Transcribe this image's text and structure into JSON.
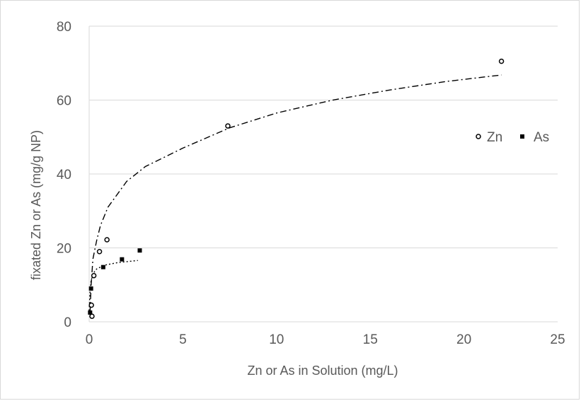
{
  "chart_data": {
    "type": "scatter",
    "title": "",
    "xlabel": "Zn or As in Solution (mg/L)",
    "ylabel": "fixated Zn or As (mg/g NP)",
    "xlim": [
      0,
      25
    ],
    "ylim": [
      0,
      80
    ],
    "x_ticks": [
      "0",
      "5",
      "10",
      "15",
      "20",
      "25"
    ],
    "y_ticks": [
      "0",
      "20",
      "40",
      "60",
      "80"
    ],
    "grid": "horizontal",
    "legend_position": "right",
    "legend": [
      "Zn",
      "As"
    ],
    "colors": {
      "axis": "#d9d9d9",
      "grid": "#d9d9d9",
      "text": "#595959",
      "marker": "#000000"
    },
    "series": [
      {
        "name": "Zn",
        "marker": "open-circle",
        "x": [
          0.15,
          0.12,
          0.25,
          0.55,
          0.95,
          7.4,
          22.0
        ],
        "y": [
          1.5,
          4.5,
          12.5,
          19.0,
          22.2,
          53.0,
          70.5
        ],
        "trendline": {
          "style": "dash-dot",
          "x": [
            0.05,
            0.1,
            0.2,
            0.4,
            0.6,
            1,
            2,
            3,
            5,
            7.5,
            10,
            13,
            16,
            19,
            22
          ],
          "y": [
            2.5,
            9.5,
            17,
            22,
            26,
            31,
            38,
            42,
            47,
            52.5,
            56.5,
            60,
            62.7,
            65,
            66.8
          ]
        }
      },
      {
        "name": "As",
        "marker": "filled-square",
        "x": [
          0.05,
          0.1,
          0.75,
          1.75,
          2.7
        ],
        "y": [
          2.5,
          9.0,
          14.8,
          16.9,
          19.3
        ],
        "trendline": {
          "style": "dotted",
          "x": [
            0.0,
            0.05,
            0.1,
            0.2,
            0.4,
            0.8,
            1.5,
            2.6
          ],
          "y": [
            3,
            8.5,
            11,
            13,
            14.3,
            15.3,
            16,
            16.6
          ]
        }
      }
    ]
  }
}
